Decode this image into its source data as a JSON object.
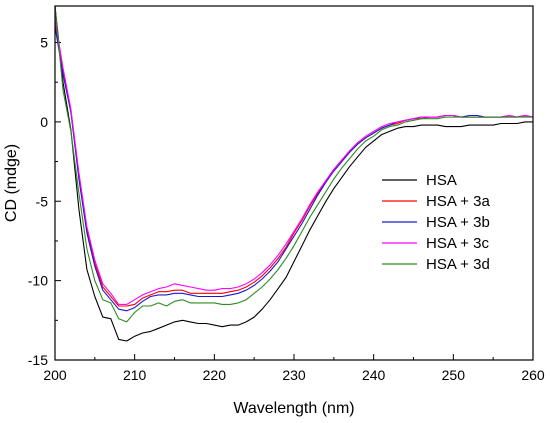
{
  "chart_data": {
    "type": "line",
    "xlabel": "Wavelength (nm)",
    "ylabel": "CD (mdge)",
    "xlim": [
      200,
      260
    ],
    "ylim": [
      -15,
      7.3
    ],
    "xticks": [
      200,
      210,
      220,
      230,
      240,
      250,
      260
    ],
    "yticks": [
      5,
      0,
      -5,
      -10,
      -15
    ],
    "grid": false,
    "legend_position": "center-right",
    "x": [
      200,
      201,
      202,
      203,
      204,
      205,
      206,
      207,
      208,
      209,
      210,
      211,
      212,
      213,
      214,
      215,
      216,
      217,
      218,
      219,
      220,
      221,
      222,
      223,
      224,
      225,
      226,
      227,
      228,
      229,
      230,
      231,
      232,
      233,
      234,
      235,
      236,
      237,
      238,
      239,
      240,
      241,
      242,
      243,
      244,
      245,
      246,
      247,
      248,
      249,
      250,
      251,
      252,
      253,
      254,
      255,
      256,
      257,
      258,
      259,
      260
    ],
    "series": [
      {
        "name": "HSA",
        "color": "#000000",
        "values": [
          7.3,
          2.5,
          -0.5,
          -5.5,
          -9.3,
          -11,
          -12.3,
          -12.4,
          -13.7,
          -13.8,
          -13.5,
          -13.3,
          -13.2,
          -13,
          -12.8,
          -12.6,
          -12.5,
          -12.6,
          -12.7,
          -12.7,
          -12.8,
          -12.9,
          -12.8,
          -12.8,
          -12.6,
          -12.3,
          -11.8,
          -11.2,
          -10.5,
          -9.8,
          -8.8,
          -7.8,
          -6.8,
          -5.9,
          -5,
          -4.2,
          -3.5,
          -2.8,
          -2.2,
          -1.6,
          -1.2,
          -0.8,
          -0.6,
          -0.4,
          -0.3,
          -0.3,
          -0.2,
          -0.2,
          -0.2,
          -0.3,
          -0.3,
          -0.3,
          -0.2,
          -0.2,
          -0.2,
          -0.2,
          -0.1,
          -0.1,
          -0.1,
          0,
          0
        ]
      },
      {
        "name": "HSA + 3a",
        "color": "#ff0000",
        "values": [
          6.2,
          3.2,
          0.7,
          -3.4,
          -6.8,
          -8.9,
          -10.4,
          -11,
          -11.6,
          -11.6,
          -11.5,
          -11.1,
          -10.9,
          -10.7,
          -10.7,
          -10.6,
          -10.6,
          -10.8,
          -10.8,
          -10.8,
          -10.8,
          -10.8,
          -10.7,
          -10.6,
          -10.4,
          -10.1,
          -9.7,
          -9.2,
          -8.6,
          -7.9,
          -7,
          -6.2,
          -5.3,
          -4.5,
          -3.7,
          -3,
          -2.4,
          -1.9,
          -1.4,
          -1,
          -0.7,
          -0.4,
          -0.2,
          -0.1,
          0.1,
          0.2,
          0.2,
          0.3,
          0.3,
          0.4,
          0.4,
          0.3,
          0.3,
          0.3,
          0.3,
          0.3,
          0.3,
          0.3,
          0.3,
          0.4,
          0.3
        ]
      },
      {
        "name": "HSA + 3b",
        "color": "#1a1acc",
        "values": [
          6.0,
          3.0,
          0.6,
          -3.6,
          -7,
          -9.1,
          -10.6,
          -11.2,
          -11.8,
          -11.9,
          -11.7,
          -11.3,
          -11,
          -10.9,
          -10.9,
          -10.8,
          -10.8,
          -10.9,
          -11,
          -11,
          -11,
          -11,
          -10.9,
          -10.8,
          -10.6,
          -10.3,
          -9.9,
          -9.4,
          -8.8,
          -8,
          -7.2,
          -6.4,
          -5.5,
          -4.6,
          -3.8,
          -3.1,
          -2.5,
          -1.9,
          -1.4,
          -1,
          -0.7,
          -0.4,
          -0.2,
          0,
          0.1,
          0.2,
          0.3,
          0.3,
          0.3,
          0.4,
          0.4,
          0.3,
          0.4,
          0.4,
          0.3,
          0.3,
          0.3,
          0.4,
          0.3,
          0.4,
          0.3
        ]
      },
      {
        "name": "HSA + 3c",
        "color": "#ff00ff",
        "values": [
          6.5,
          3.4,
          0.8,
          -3.2,
          -6.6,
          -8.7,
          -10.2,
          -10.8,
          -11.5,
          -11.5,
          -11.2,
          -10.9,
          -10.7,
          -10.5,
          -10.4,
          -10.2,
          -10.3,
          -10.4,
          -10.5,
          -10.6,
          -10.6,
          -10.5,
          -10.5,
          -10.4,
          -10.2,
          -9.9,
          -9.5,
          -9,
          -8.4,
          -7.7,
          -6.9,
          -6.1,
          -5.2,
          -4.4,
          -3.7,
          -3,
          -2.4,
          -1.8,
          -1.3,
          -0.9,
          -0.6,
          -0.3,
          -0.1,
          0,
          0.1,
          0.2,
          0.3,
          0.3,
          0.3,
          0.4,
          0.4,
          0.3,
          0.3,
          0.3,
          0.3,
          0.3,
          0.3,
          0.4,
          0.3,
          0.4,
          0.3
        ]
      },
      {
        "name": "HSA + 3d",
        "color": "#2e8b22",
        "values": [
          7.3,
          2.0,
          -0.6,
          -4.5,
          -8,
          -10,
          -11.2,
          -11.4,
          -12.4,
          -12.6,
          -12,
          -11.6,
          -11.6,
          -11.4,
          -11.6,
          -11.3,
          -11.2,
          -11.4,
          -11.4,
          -11.4,
          -11.4,
          -11.5,
          -11.5,
          -11.4,
          -11.2,
          -10.8,
          -10.4,
          -9.9,
          -9.3,
          -8.6,
          -7.8,
          -6.9,
          -6,
          -5.2,
          -4.4,
          -3.6,
          -2.9,
          -2.3,
          -1.7,
          -1.2,
          -0.9,
          -0.5,
          -0.3,
          -0.2,
          0,
          0.1,
          0.2,
          0.2,
          0.2,
          0.3,
          0.3,
          0.3,
          0.3,
          0.3,
          0.3,
          0.3,
          0.3,
          0.3,
          0.3,
          0.3,
          0.3
        ]
      }
    ]
  }
}
